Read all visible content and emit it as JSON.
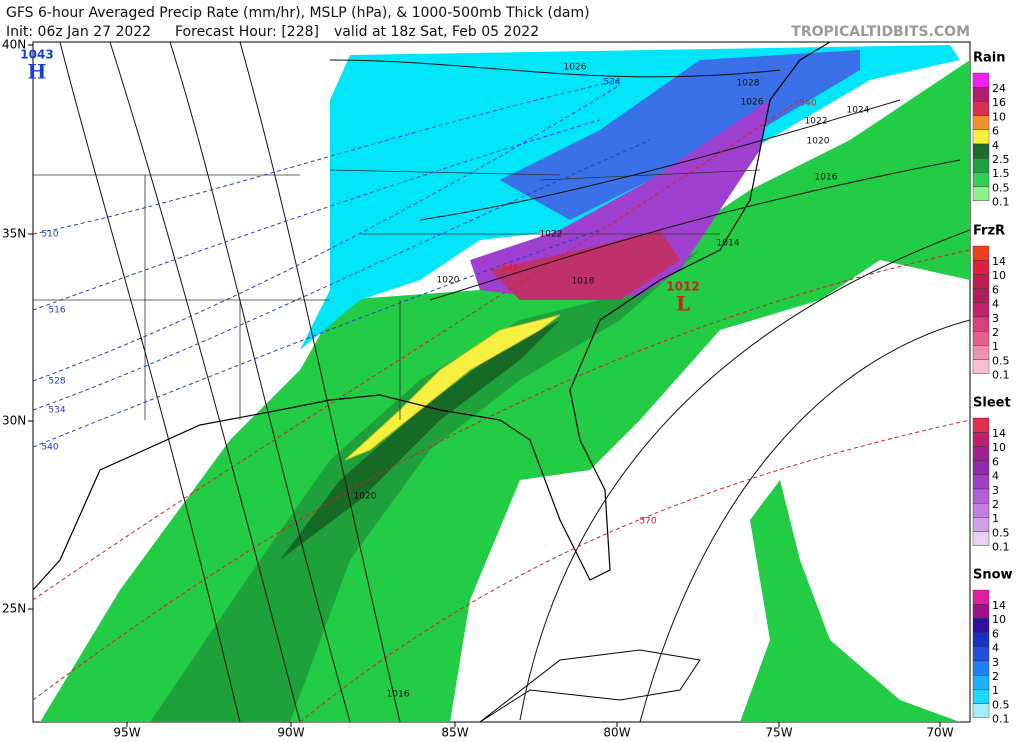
{
  "header": {
    "title": "GFS 6-hour Averaged Precip Rate (mm/hr), MSLP (hPa), & 1000-500mb Thick (dam)",
    "init": "Init: 06z Jan 27 2022",
    "forecast_hour": "Forecast Hour: [228]",
    "valid": "valid at 18z Sat, Feb 05 2022",
    "site": "TROPICALTIDBITS.COM"
  },
  "map": {
    "lat_labels": [
      "40N",
      "35N",
      "30N",
      "25N"
    ],
    "lon_labels": [
      "95W",
      "90W",
      "85W",
      "80W",
      "75W",
      "70W"
    ],
    "pressure_centers": [
      {
        "symbol": "H",
        "pressure": 1043,
        "color": "#1a3fd6"
      },
      {
        "symbol": "L",
        "pressure": 1012,
        "color": "#d81c1c"
      }
    ],
    "isobar_labels": [
      1026,
      1028,
      1026,
      1024,
      1022,
      1020,
      1016,
      1022,
      1020,
      1018,
      1014,
      1020,
      1016
    ],
    "thickness_labels": [
      534,
      540,
      510,
      516,
      528,
      534,
      540,
      546,
      570
    ]
  },
  "legends": [
    {
      "title": "Rain",
      "labels": [
        24,
        16,
        10,
        6,
        4,
        2.5,
        1.5,
        0.5,
        0.1
      ],
      "colors": [
        "#f020f0",
        "#b0206a",
        "#d83050",
        "#f09030",
        "#f8f040",
        "#1e6a2a",
        "#20a040",
        "#30d050",
        "#90f090"
      ]
    },
    {
      "title": "FrzR",
      "labels": [
        14,
        10,
        6,
        4,
        3,
        2,
        1,
        0.5,
        0.1
      ],
      "colors": [
        "#f04020",
        "#e02040",
        "#c01c50",
        "#b01c60",
        "#c02070",
        "#d84080",
        "#e86090",
        "#f090b0",
        "#f8c0d0"
      ]
    },
    {
      "title": "Sleet",
      "labels": [
        14,
        10,
        6,
        4,
        3,
        2,
        1,
        0.5,
        0.1
      ],
      "colors": [
        "#e03050",
        "#c02070",
        "#a02090",
        "#9028b0",
        "#a040c8",
        "#b060d8",
        "#c080e0",
        "#d0a0e8",
        "#e8d0f4"
      ]
    },
    {
      "title": "Snow",
      "labels": [
        14,
        10,
        6,
        4,
        3,
        2,
        1,
        0.5,
        0.1
      ],
      "colors": [
        "#e020a0",
        "#a0108a",
        "#3010a0",
        "#1a30c8",
        "#2050e0",
        "#2080f0",
        "#20b0f8",
        "#20d8f8",
        "#a0f0ff"
      ]
    }
  ]
}
